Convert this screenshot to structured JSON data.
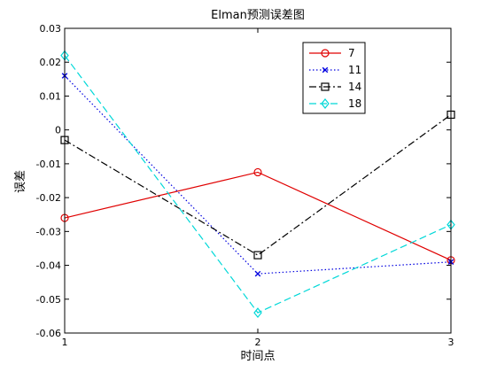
{
  "chart_data": {
    "type": "line",
    "title": "Elman预测误差图",
    "xlabel": "时间点",
    "ylabel": "误差",
    "x": [
      1,
      2,
      3
    ],
    "xlim": [
      1,
      3
    ],
    "ylim": [
      -0.06,
      0.03
    ],
    "xticks": [
      1,
      2,
      3
    ],
    "yticks": [
      0.03,
      0.02,
      0.01,
      0,
      -0.01,
      -0.02,
      -0.03,
      -0.04,
      -0.05,
      -0.06
    ],
    "ytick_labels": [
      "0.03",
      "0.02",
      "0.01",
      "0",
      "-0.01",
      "-0.02",
      "-0.03",
      "-0.04",
      "-0.05",
      "-0.06"
    ],
    "grid": false,
    "legend_position": "top-right",
    "series": [
      {
        "name": "7",
        "values": [
          -0.026,
          -0.0125,
          -0.0385
        ],
        "color": "#e00000",
        "marker": "circle",
        "line": "solid"
      },
      {
        "name": "11",
        "values": [
          0.016,
          -0.0425,
          -0.039
        ],
        "color": "#0000e0",
        "marker": "x",
        "line": "dotted"
      },
      {
        "name": "14",
        "values": [
          -0.003,
          -0.037,
          0.0045
        ],
        "color": "#000000",
        "marker": "square",
        "line": "dashdot"
      },
      {
        "name": "18",
        "values": [
          0.022,
          -0.054,
          -0.028
        ],
        "color": "#00d8d8",
        "marker": "diamond",
        "line": "dashed"
      }
    ]
  }
}
